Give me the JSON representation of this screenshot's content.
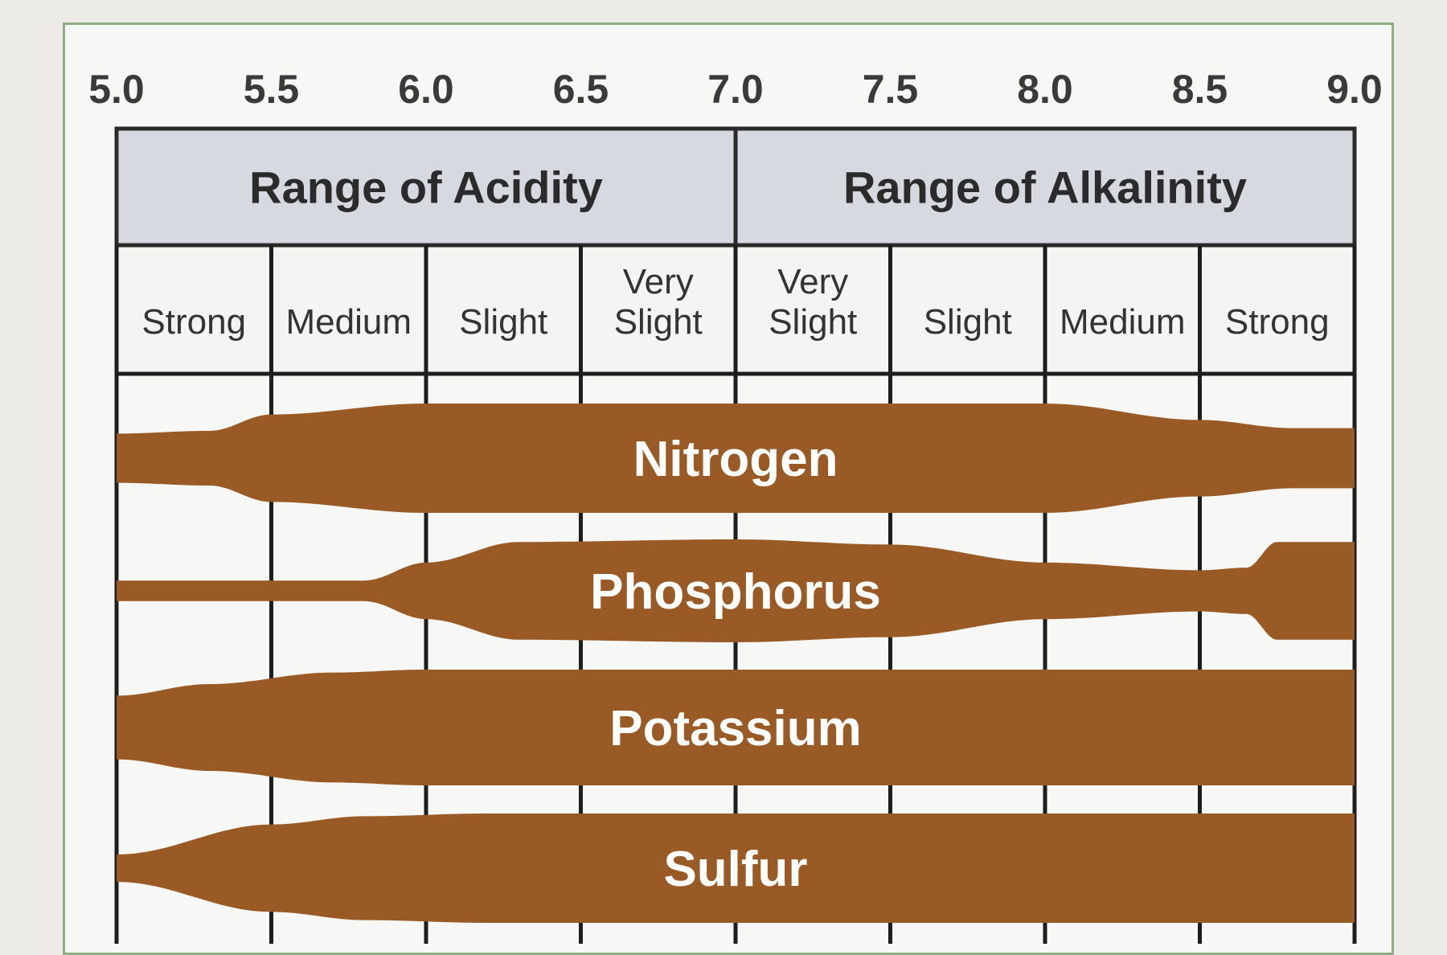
{
  "chart_data": {
    "type": "other",
    "description_type": "nutrient availability band chart",
    "x_ticks": [
      "5.0",
      "5.5",
      "6.0",
      "6.5",
      "7.0",
      "7.5",
      "8.0",
      "8.5",
      "9.0"
    ],
    "xlim": [
      5.0,
      9.0
    ],
    "ranges": [
      {
        "label": "Range of Acidity",
        "from": 5.0,
        "to": 7.0
      },
      {
        "label": "Range of Alkalinity",
        "from": 7.0,
        "to": 9.0
      }
    ],
    "degrees": [
      {
        "label": [
          "Strong"
        ],
        "from": 5.0,
        "to": 5.5
      },
      {
        "label": [
          "Medium"
        ],
        "from": 5.5,
        "to": 6.0
      },
      {
        "label": [
          "Slight"
        ],
        "from": 6.0,
        "to": 6.5
      },
      {
        "label": [
          "Very",
          "Slight"
        ],
        "from": 6.5,
        "to": 7.0
      },
      {
        "label": [
          "Very",
          "Slight"
        ],
        "from": 7.0,
        "to": 7.5
      },
      {
        "label": [
          "Slight"
        ],
        "from": 7.5,
        "to": 8.0
      },
      {
        "label": [
          "Medium"
        ],
        "from": 8.0,
        "to": 8.5
      },
      {
        "label": [
          "Strong"
        ],
        "from": 8.5,
        "to": 9.0
      }
    ],
    "bands": [
      {
        "name": "Nitrogen",
        "color": "#9a5a26",
        "thickness": [
          [
            5.0,
            0.45
          ],
          [
            5.3,
            0.5
          ],
          [
            5.5,
            0.8
          ],
          [
            6.0,
            1.0
          ],
          [
            7.0,
            1.0
          ],
          [
            8.0,
            1.0
          ],
          [
            8.5,
            0.7
          ],
          [
            8.8,
            0.55
          ],
          [
            9.0,
            0.55
          ]
        ]
      },
      {
        "name": "Phosphorus",
        "color": "#9a5a26",
        "thickness": [
          [
            5.0,
            0.2
          ],
          [
            5.8,
            0.2
          ],
          [
            6.0,
            0.55
          ],
          [
            6.3,
            0.95
          ],
          [
            7.0,
            1.0
          ],
          [
            7.5,
            0.9
          ],
          [
            8.0,
            0.55
          ],
          [
            8.5,
            0.4
          ],
          [
            8.65,
            0.45
          ],
          [
            8.75,
            0.95
          ],
          [
            9.0,
            0.95
          ]
        ]
      },
      {
        "name": "Potassium",
        "color": "#9a5a26",
        "thickness": [
          [
            5.0,
            0.55
          ],
          [
            5.3,
            0.75
          ],
          [
            5.7,
            0.95
          ],
          [
            6.0,
            1.0
          ],
          [
            9.0,
            1.0
          ]
        ]
      },
      {
        "name": "Sulfur",
        "color": "#9a5a26",
        "thickness": [
          [
            5.0,
            0.25
          ],
          [
            5.5,
            0.8
          ],
          [
            5.8,
            0.95
          ],
          [
            6.2,
            1.0
          ],
          [
            9.0,
            1.0
          ]
        ]
      }
    ]
  }
}
